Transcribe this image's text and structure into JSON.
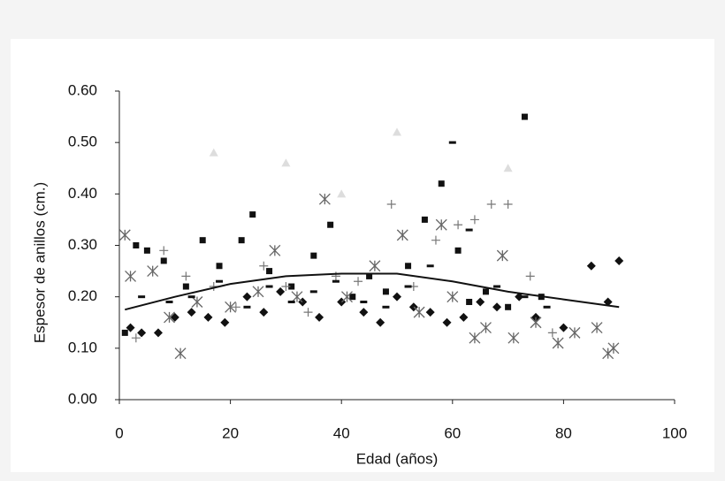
{
  "chart_data": {
    "type": "scatter",
    "x_label": "Edad (años)",
    "y_label": "Espesor de anillos (cm.)",
    "xlim": [
      0,
      100
    ],
    "xticks": [
      0,
      20,
      40,
      60,
      80,
      100
    ],
    "ylim": [
      0,
      0.6
    ],
    "yticks": [
      {
        "value": 0,
        "label": "0.00"
      },
      {
        "value": 0.1,
        "label": "0.10"
      },
      {
        "value": 0.2,
        "label": "0.20"
      },
      {
        "value": 0.3,
        "label": "0.30"
      },
      {
        "value": 0.4,
        "label": "0.40"
      },
      {
        "value": 0.5,
        "label": "0.50"
      },
      {
        "value": 0.6,
        "label": "0.60"
      }
    ],
    "grid": false,
    "series": [
      {
        "marker": "square",
        "color": "#111111",
        "x": [
          1,
          3,
          5,
          8,
          12,
          15,
          18,
          22,
          24,
          27,
          31,
          35,
          38,
          42,
          45,
          48,
          52,
          55,
          58,
          61,
          63,
          66,
          70,
          73,
          76
        ],
        "values": [
          0.13,
          0.3,
          0.29,
          0.27,
          0.22,
          0.31,
          0.26,
          0.31,
          0.36,
          0.25,
          0.22,
          0.28,
          0.34,
          0.2,
          0.24,
          0.21,
          0.26,
          0.35,
          0.42,
          0.29,
          0.19,
          0.21,
          0.18,
          0.55,
          0.2
        ]
      },
      {
        "marker": "diamond",
        "color": "#111111",
        "x": [
          2,
          4,
          7,
          10,
          13,
          16,
          19,
          23,
          26,
          29,
          33,
          36,
          40,
          44,
          47,
          50,
          53,
          56,
          59,
          62,
          65,
          68,
          72,
          75,
          80,
          85,
          88,
          90
        ],
        "values": [
          0.14,
          0.13,
          0.13,
          0.16,
          0.17,
          0.16,
          0.15,
          0.2,
          0.17,
          0.21,
          0.19,
          0.16,
          0.19,
          0.17,
          0.15,
          0.2,
          0.18,
          0.17,
          0.15,
          0.16,
          0.19,
          0.18,
          0.2,
          0.16,
          0.14,
          0.26,
          0.19,
          0.27
        ]
      },
      {
        "marker": "plus",
        "color": "#777777",
        "x": [
          3,
          8,
          12,
          17,
          21,
          26,
          30,
          34,
          39,
          43,
          49,
          53,
          57,
          61,
          64,
          67,
          70,
          74,
          78
        ],
        "values": [
          0.12,
          0.29,
          0.24,
          0.22,
          0.18,
          0.26,
          0.22,
          0.17,
          0.24,
          0.23,
          0.38,
          0.22,
          0.31,
          0.34,
          0.35,
          0.38,
          0.38,
          0.24,
          0.13
        ]
      },
      {
        "marker": "asterisk",
        "color": "#666666",
        "x": [
          1,
          2,
          6,
          9,
          11,
          14,
          20,
          25,
          28,
          32,
          37,
          41,
          46,
          51,
          54,
          58,
          60,
          64,
          66,
          69,
          71,
          75,
          79,
          82,
          86,
          88,
          89
        ],
        "values": [
          0.32,
          0.24,
          0.25,
          0.16,
          0.09,
          0.19,
          0.18,
          0.21,
          0.29,
          0.2,
          0.39,
          0.2,
          0.26,
          0.32,
          0.17,
          0.34,
          0.2,
          0.12,
          0.14,
          0.28,
          0.12,
          0.15,
          0.11,
          0.13,
          0.14,
          0.09,
          0.1
        ]
      },
      {
        "marker": "dash",
        "color": "#111111",
        "x": [
          4,
          9,
          13,
          18,
          23,
          27,
          31,
          35,
          39,
          44,
          48,
          52,
          56,
          60,
          63,
          68,
          73,
          77
        ],
        "values": [
          0.2,
          0.19,
          0.2,
          0.23,
          0.18,
          0.22,
          0.19,
          0.21,
          0.23,
          0.19,
          0.18,
          0.22,
          0.26,
          0.5,
          0.33,
          0.22,
          0.2,
          0.18
        ]
      },
      {
        "marker": "triangle",
        "color": "#dddddd",
        "x": [
          17,
          30,
          40,
          50,
          70
        ],
        "values": [
          0.48,
          0.46,
          0.4,
          0.52,
          0.45
        ]
      },
      {
        "marker": "line",
        "color": "#111111",
        "x": [
          1,
          10,
          20,
          30,
          40,
          50,
          60,
          70,
          80,
          90
        ],
        "values": [
          0.175,
          0.2,
          0.225,
          0.24,
          0.245,
          0.245,
          0.23,
          0.21,
          0.195,
          0.18
        ]
      }
    ]
  }
}
